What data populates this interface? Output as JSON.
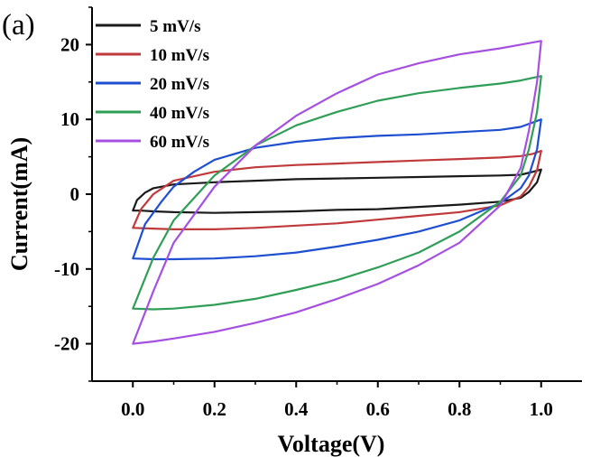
{
  "panel_label": "(a)",
  "chart_data": {
    "type": "line",
    "xlabel": "Voltage(V)",
    "ylabel": "Current(mA)",
    "xlim": [
      -0.1,
      1.1
    ],
    "ylim": [
      -25,
      25
    ],
    "xticks": [
      0.0,
      0.2,
      0.4,
      0.6,
      0.8,
      1.0
    ],
    "xtick_labels": [
      "0.0",
      "0.2",
      "0.4",
      "0.6",
      "0.8",
      "1.0"
    ],
    "yticks": [
      -20,
      -10,
      0,
      10,
      20
    ],
    "ytick_labels": [
      "-20",
      "-10",
      "0",
      "10",
      "20"
    ],
    "grid": false,
    "legend_position": "top-left",
    "series": [
      {
        "name": "5 mV/s",
        "color": "#1a1a1a",
        "x": [
          0.0,
          0.01,
          0.03,
          0.05,
          0.1,
          0.2,
          0.3,
          0.4,
          0.5,
          0.6,
          0.7,
          0.8,
          0.9,
          0.95,
          0.98,
          1.0,
          0.99,
          0.97,
          0.95,
          0.9,
          0.8,
          0.7,
          0.6,
          0.5,
          0.4,
          0.3,
          0.2,
          0.1,
          0.05,
          0.02,
          0.0
        ],
        "y": [
          -2.2,
          -0.8,
          0.2,
          0.8,
          1.3,
          1.6,
          1.8,
          2.0,
          2.1,
          2.2,
          2.3,
          2.4,
          2.5,
          2.6,
          3.0,
          3.3,
          1.6,
          0.3,
          -0.5,
          -1.0,
          -1.4,
          -1.7,
          -2.0,
          -2.1,
          -2.3,
          -2.4,
          -2.5,
          -2.4,
          -2.3,
          -2.2,
          -2.2
        ]
      },
      {
        "name": "10 mV/s",
        "color": "#c0393b",
        "x": [
          0.0,
          0.02,
          0.05,
          0.1,
          0.2,
          0.3,
          0.4,
          0.5,
          0.6,
          0.7,
          0.8,
          0.9,
          0.95,
          0.98,
          1.0,
          0.99,
          0.97,
          0.95,
          0.9,
          0.8,
          0.7,
          0.6,
          0.5,
          0.4,
          0.3,
          0.2,
          0.1,
          0.05,
          0.0
        ],
        "y": [
          -4.5,
          -2.0,
          0.0,
          1.8,
          3.0,
          3.6,
          3.9,
          4.1,
          4.3,
          4.5,
          4.7,
          4.9,
          5.1,
          5.4,
          5.8,
          3.2,
          1.0,
          -0.3,
          -1.5,
          -2.4,
          -2.9,
          -3.4,
          -3.9,
          -4.2,
          -4.5,
          -4.7,
          -4.7,
          -4.6,
          -4.5
        ]
      },
      {
        "name": "20 mV/s",
        "color": "#1f4fd1",
        "x": [
          0.0,
          0.03,
          0.07,
          0.1,
          0.15,
          0.2,
          0.3,
          0.4,
          0.5,
          0.6,
          0.7,
          0.8,
          0.9,
          0.95,
          1.0,
          0.99,
          0.97,
          0.95,
          0.9,
          0.8,
          0.7,
          0.6,
          0.5,
          0.4,
          0.3,
          0.2,
          0.1,
          0.05,
          0.0
        ],
        "y": [
          -8.6,
          -4.0,
          -1.0,
          1.0,
          3.0,
          4.6,
          6.2,
          7.0,
          7.5,
          7.8,
          8.0,
          8.3,
          8.6,
          9.0,
          10.0,
          6.0,
          2.5,
          0.8,
          -1.2,
          -3.5,
          -5.0,
          -6.1,
          -7.0,
          -7.8,
          -8.3,
          -8.6,
          -8.7,
          -8.7,
          -8.6
        ]
      },
      {
        "name": "40 mV/s",
        "color": "#2f9e56",
        "x": [
          0.0,
          0.05,
          0.1,
          0.2,
          0.3,
          0.4,
          0.5,
          0.6,
          0.7,
          0.8,
          0.9,
          0.95,
          1.0,
          0.99,
          0.97,
          0.95,
          0.9,
          0.8,
          0.7,
          0.6,
          0.5,
          0.4,
          0.3,
          0.2,
          0.1,
          0.05,
          0.0
        ],
        "y": [
          -15.3,
          -8.5,
          -3.5,
          2.5,
          6.5,
          9.2,
          11.0,
          12.5,
          13.5,
          14.2,
          14.8,
          15.2,
          15.8,
          11.0,
          6.0,
          2.5,
          -1.0,
          -5.0,
          -7.8,
          -9.8,
          -11.5,
          -12.8,
          -14.0,
          -14.8,
          -15.3,
          -15.4,
          -15.3
        ]
      },
      {
        "name": "60 mV/s",
        "color": "#a550e0",
        "x": [
          0.0,
          0.05,
          0.1,
          0.2,
          0.3,
          0.4,
          0.5,
          0.6,
          0.7,
          0.8,
          0.9,
          0.95,
          1.0,
          0.99,
          0.97,
          0.95,
          0.9,
          0.8,
          0.7,
          0.6,
          0.5,
          0.4,
          0.3,
          0.2,
          0.1,
          0.05,
          0.0
        ],
        "y": [
          -20.0,
          -13.0,
          -6.5,
          1.0,
          6.5,
          10.5,
          13.5,
          16.0,
          17.5,
          18.7,
          19.5,
          20.0,
          20.5,
          15.0,
          8.5,
          3.5,
          -1.5,
          -6.5,
          -9.5,
          -12.0,
          -14.0,
          -15.8,
          -17.2,
          -18.4,
          -19.3,
          -19.7,
          -20.0
        ]
      }
    ]
  }
}
